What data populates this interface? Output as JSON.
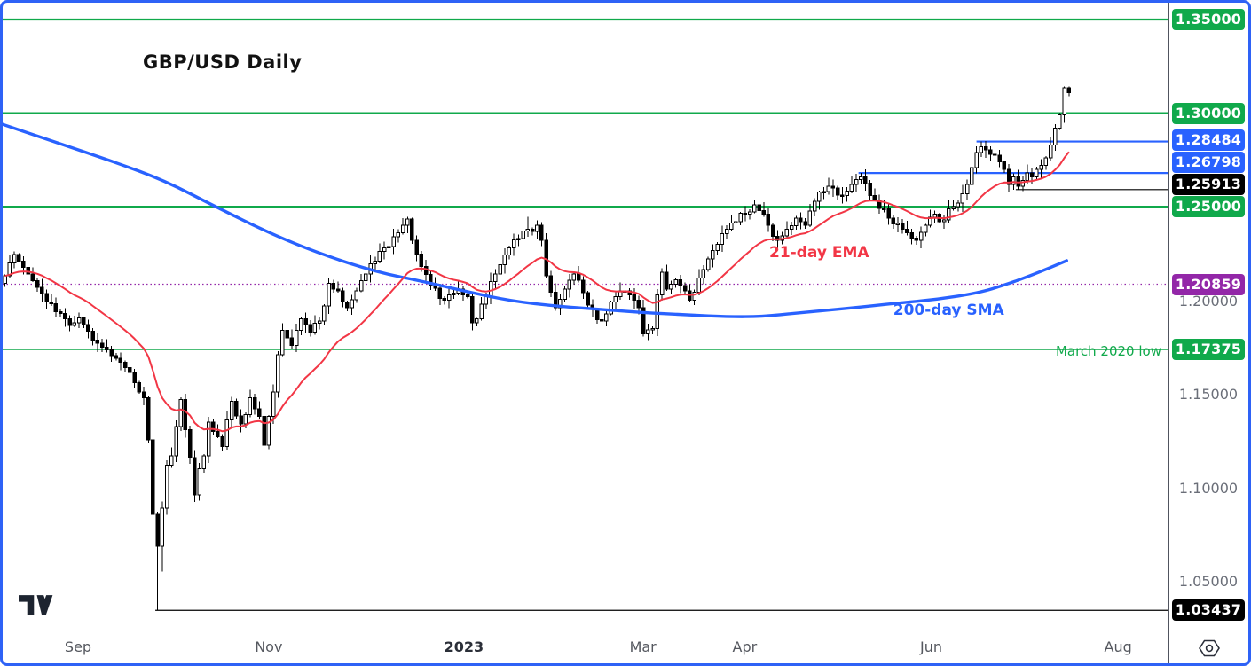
{
  "chart": {
    "title": "GBP/USD Daily",
    "symbol": "GBP/USD",
    "timeframe": "Daily"
  },
  "colors": {
    "green": "#10A94B",
    "blue": "#2962FF",
    "black": "#000000",
    "purple": "#9327A8",
    "red": "#F23645",
    "axis_text": "#6A6E78",
    "time_text": "#55585F",
    "frame": "#2E62F6",
    "candle_up": "#FFFFFF",
    "candle_down": "#000000",
    "candle_border": "#000000"
  },
  "icons": {
    "logo": "tradingview-logo",
    "scale_menu": "price-scale-settings-icon"
  },
  "chart_data": {
    "type": "candlestick",
    "title": "GBP/USD Daily",
    "x_axis": {
      "domain_days": [
        0,
        252
      ],
      "labels": [
        {
          "text": "Sep",
          "day": 16.3,
          "bold": false
        },
        {
          "text": "Nov",
          "day": 57.5,
          "bold": false
        },
        {
          "text": "2023",
          "day": 99.7,
          "bold": true
        },
        {
          "text": "Mar",
          "day": 138.4,
          "bold": false
        },
        {
          "text": "Apr",
          "day": 160.4,
          "bold": false
        },
        {
          "text": "Jun",
          "day": 200.7,
          "bold": false
        },
        {
          "text": "Aug",
          "day": 241.1,
          "bold": false
        }
      ]
    },
    "y_axis": {
      "domain": [
        1.0236,
        1.359
      ],
      "plain_ticks": [
        {
          "text": "1.20000",
          "price": 1.2
        },
        {
          "text": "1.15000",
          "price": 1.15
        },
        {
          "text": "1.10000",
          "price": 1.1
        },
        {
          "text": "1.05000",
          "price": 1.05
        }
      ]
    },
    "levels": [
      {
        "label": "1.35000",
        "price": 1.35,
        "color": "#10A94B",
        "line_width": 2.2,
        "style": "solid",
        "start_day": 0
      },
      {
        "label": "1.30000",
        "price": 1.3,
        "color": "#10A94B",
        "line_width": 2.2,
        "style": "solid",
        "start_day": 0
      },
      {
        "label": "1.28484",
        "price": 1.28484,
        "color": "#2962FF",
        "line_width": 2.2,
        "style": "solid",
        "start_day": 210.5
      },
      {
        "label": "1.26798",
        "price": 1.26798,
        "color": "#2962FF",
        "line_width": 2.2,
        "style": "solid",
        "start_day": 185.0
      },
      {
        "label": "1.25913",
        "price": 1.25913,
        "color": "#000000",
        "line_width": 1.2,
        "style": "solid",
        "start_day": 219.0
      },
      {
        "label": "1.25000",
        "price": 1.25,
        "color": "#10A94B",
        "line_width": 2.2,
        "style": "solid",
        "start_day": 0
      },
      {
        "label": "1.20859",
        "price": 1.20859,
        "color": "#9327A8",
        "line_width": 1.3,
        "style": "dotted",
        "start_day": 0
      },
      {
        "label": "1.17375",
        "price": 1.17375,
        "color": "#10A94B",
        "line_width": 1.3,
        "style": "solid",
        "start_day": 0
      },
      {
        "label": "1.03437",
        "price": 1.03437,
        "color": "#000000",
        "line_width": 1.2,
        "style": "solid",
        "start_day": 33
      }
    ],
    "candles": {
      "up_color": "#FFFFFF",
      "down_color": "#000000",
      "border_color": "#000000",
      "close_path": [
        [
          0,
          1.213
        ],
        [
          1,
          1.22
        ],
        [
          2,
          1.2245
        ],
        [
          3,
          1.221
        ],
        [
          4,
          1.2175
        ],
        [
          5,
          1.214
        ],
        [
          6,
          1.2105
        ],
        [
          7,
          1.207
        ],
        [
          8,
          1.2035
        ],
        [
          9,
          1.199
        ],
        [
          11,
          1.194
        ],
        [
          12,
          1.193
        ],
        [
          13,
          1.19
        ],
        [
          14,
          1.1865
        ],
        [
          15,
          1.188
        ],
        [
          16,
          1.1905
        ],
        [
          17,
          1.187
        ],
        [
          18,
          1.1835
        ],
        [
          20,
          1.177
        ],
        [
          22,
          1.1735
        ],
        [
          24,
          1.169
        ],
        [
          26,
          1.164
        ],
        [
          28,
          1.156
        ],
        [
          29,
          1.151
        ],
        [
          30,
          1.148
        ],
        [
          31,
          1.1255
        ],
        [
          32,
          1.0856
        ],
        [
          33,
          1.0686
        ],
        [
          34,
          1.089
        ],
        [
          35,
          1.112
        ],
        [
          36,
          1.117
        ],
        [
          37,
          1.1325
        ],
        [
          38,
          1.147
        ],
        [
          39,
          1.131
        ],
        [
          40,
          1.116
        ],
        [
          41,
          1.096
        ],
        [
          42,
          1.11
        ],
        [
          43,
          1.117
        ],
        [
          44,
          1.135
        ],
        [
          45,
          1.13
        ],
        [
          47,
          1.122
        ],
        [
          49,
          1.146
        ],
        [
          51,
          1.134
        ],
        [
          53,
          1.148
        ],
        [
          55,
          1.138
        ],
        [
          56,
          1.1225
        ],
        [
          57,
          1.138
        ],
        [
          58,
          1.151
        ],
        [
          59,
          1.171
        ],
        [
          60,
          1.184
        ],
        [
          62,
          1.176
        ],
        [
          64,
          1.19
        ],
        [
          66,
          1.183
        ],
        [
          68,
          1.189
        ],
        [
          70,
          1.209
        ],
        [
          72,
          1.205
        ],
        [
          74,
          1.196
        ],
        [
          76,
          1.205
        ],
        [
          78,
          1.214
        ],
        [
          80,
          1.221
        ],
        [
          82,
          1.228
        ],
        [
          84,
          1.234
        ],
        [
          86,
          1.24
        ],
        [
          87,
          1.2435
        ],
        [
          88,
          1.232
        ],
        [
          90,
          1.218
        ],
        [
          92,
          1.208
        ],
        [
          94,
          1.201
        ],
        [
          96,
          1.203
        ],
        [
          98,
          1.206
        ],
        [
          100,
          1.202
        ],
        [
          101,
          1.188
        ],
        [
          102,
          1.19
        ],
        [
          103,
          1.198
        ],
        [
          105,
          1.21
        ],
        [
          107,
          1.219
        ],
        [
          109,
          1.228
        ],
        [
          111,
          1.233
        ],
        [
          113,
          1.238
        ],
        [
          115,
          1.24
        ],
        [
          116,
          1.232
        ],
        [
          117,
          1.213
        ],
        [
          119,
          1.196
        ],
        [
          121,
          1.206
        ],
        [
          123,
          1.214
        ],
        [
          125,
          1.204
        ],
        [
          127,
          1.195
        ],
        [
          129,
          1.189
        ],
        [
          131,
          1.199
        ],
        [
          133,
          1.205
        ],
        [
          135,
          1.203
        ],
        [
          137,
          1.196
        ],
        [
          138,
          1.182
        ],
        [
          140,
          1.185
        ],
        [
          141,
          1.203
        ],
        [
          142,
          1.215
        ],
        [
          143,
          1.206
        ],
        [
          145,
          1.211
        ],
        [
          147,
          1.205
        ],
        [
          148,
          1.2
        ],
        [
          150,
          1.212
        ],
        [
          152,
          1.222
        ],
        [
          154,
          1.23
        ],
        [
          156,
          1.238
        ],
        [
          158,
          1.242
        ],
        [
          160,
          1.246
        ],
        [
          162,
          1.251
        ],
        [
          163,
          1.248
        ],
        [
          165,
          1.24
        ],
        [
          167,
          1.232
        ],
        [
          169,
          1.238
        ],
        [
          171,
          1.244
        ],
        [
          173,
          1.24
        ],
        [
          175,
          1.253
        ],
        [
          177,
          1.258
        ],
        [
          179,
          1.26
        ],
        [
          181,
          1.256
        ],
        [
          183,
          1.262
        ],
        [
          185,
          1.266
        ],
        [
          187,
          1.256
        ],
        [
          189,
          1.249
        ],
        [
          191,
          1.244
        ],
        [
          193,
          1.241
        ],
        [
          195,
          1.236
        ],
        [
          197,
          1.232
        ],
        [
          199,
          1.24
        ],
        [
          201,
          1.246
        ],
        [
          203,
          1.243
        ],
        [
          205,
          1.25
        ],
        [
          207,
          1.257
        ],
        [
          208,
          1.262
        ],
        [
          209,
          1.271
        ],
        [
          210,
          1.279
        ],
        [
          211,
          1.282
        ],
        [
          213,
          1.278
        ],
        [
          215,
          1.274
        ],
        [
          216,
          1.27
        ],
        [
          217,
          1.262
        ],
        [
          218,
          1.266
        ],
        [
          219,
          1.261
        ],
        [
          220,
          1.264
        ],
        [
          221,
          1.268
        ],
        [
          222,
          1.266
        ],
        [
          223,
          1.27
        ],
        [
          224,
          1.272
        ],
        [
          225,
          1.276
        ],
        [
          226,
          1.283
        ],
        [
          227,
          1.292
        ],
        [
          228,
          1.299
        ],
        [
          229,
          1.3135
        ],
        [
          230,
          1.311
        ]
      ],
      "wick_overrides": {
        "33": {
          "l": 1.0345
        },
        "34": {
          "l": 1.055
        },
        "41": {
          "l": 1.0923
        },
        "87": {
          "h": 1.2446
        },
        "113": {
          "h": 1.2447
        },
        "162": {
          "h": 1.2539
        },
        "185": {
          "h": 1.268
        },
        "211": {
          "h": 1.2848
        },
        "219": {
          "l": 1.2591
        },
        "229": {
          "h": 1.3142
        },
        "230": {
          "h": 1.3142
        }
      }
    },
    "series": [
      {
        "name": "21-day EMA",
        "type": "ema",
        "period": 21,
        "color": "#F23645"
      },
      {
        "name": "200-day SMA",
        "type": "sma",
        "color": "#2962FF",
        "points": [
          [
            0,
            1.294
          ],
          [
            12,
            1.284
          ],
          [
            24,
            1.274
          ],
          [
            35,
            1.264
          ],
          [
            46,
            1.25
          ],
          [
            58,
            1.2355
          ],
          [
            69,
            1.2245
          ],
          [
            81,
            1.215
          ],
          [
            91,
            1.21
          ],
          [
            100,
            1.2048
          ],
          [
            110,
            1.1996
          ],
          [
            120,
            1.1968
          ],
          [
            129,
            1.1952
          ],
          [
            138,
            1.1935
          ],
          [
            148,
            1.1922
          ],
          [
            157,
            1.1912
          ],
          [
            164,
            1.1913
          ],
          [
            172,
            1.1933
          ],
          [
            183,
            1.1958
          ],
          [
            193,
            1.1984
          ],
          [
            202,
            1.2005
          ],
          [
            211,
            1.204
          ],
          [
            217,
            1.2085
          ],
          [
            222,
            1.213
          ],
          [
            226,
            1.217
          ],
          [
            230,
            1.2212
          ]
        ]
      }
    ],
    "annotations": [
      {
        "id": "ema_label",
        "text": "21-day EMA",
        "color": "#F23645",
        "day": 165.7,
        "price": 1.2255
      },
      {
        "id": "sma_label",
        "text": "200-day SMA",
        "color": "#2962FF",
        "day": 192.5,
        "price": 1.1944
      },
      {
        "id": "march_low",
        "text": "March 2020 low",
        "color": "#10A94B",
        "price": 1.177,
        "align": "right"
      }
    ]
  }
}
